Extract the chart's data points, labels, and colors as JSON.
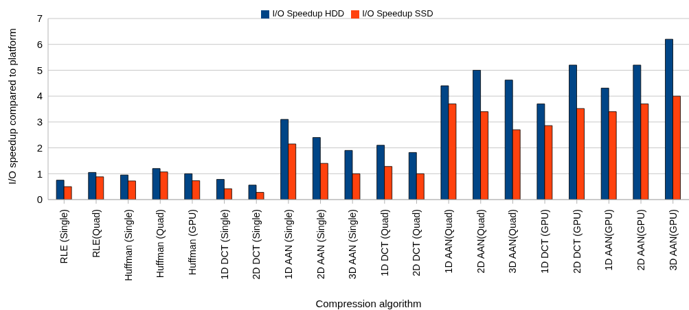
{
  "chart_data": {
    "type": "bar",
    "xlabel": "Compression algorithm",
    "ylabel": "I/O speedup compared to platform",
    "categories": [
      "RLE (Single)",
      "RLE(Quad)",
      "Huffman (Single)",
      "Huffman (Quad)",
      "Huffman (GPU)",
      "1D DCT (Single)",
      "2D DCT (Single)",
      "1D AAN (Single)",
      "2D AAN (Single)",
      "3D AAN (Single)",
      "1D DCT (Quad)",
      "2D DCT (Quad)",
      "1D AAN(Quad)",
      "2D AAN(Quad)",
      "3D AAN(Quad)",
      "1D DCT (GPU)",
      "2D DCT (GPU)",
      "1D AAN(GPU)",
      "2D AAN(GPU)",
      "3D AAN(GPU)"
    ],
    "series": [
      {
        "name": "I/O Speedup HDD",
        "color": "#004586",
        "values": [
          0.75,
          1.05,
          0.95,
          1.2,
          1.0,
          0.78,
          0.56,
          3.1,
          2.4,
          1.9,
          2.1,
          1.82,
          4.4,
          5.0,
          4.62,
          3.7,
          5.2,
          4.31,
          5.2,
          6.2
        ]
      },
      {
        "name": "I/O Speedup SSD",
        "color": "#ff420e",
        "values": [
          0.5,
          0.88,
          0.72,
          1.07,
          0.73,
          0.42,
          0.28,
          2.15,
          1.4,
          1.0,
          1.28,
          1.0,
          3.7,
          3.4,
          2.7,
          2.86,
          3.52,
          3.4,
          3.7,
          4.0
        ]
      }
    ],
    "ylim": [
      0,
      7
    ],
    "yticks": [
      0,
      1,
      2,
      3,
      4,
      5,
      6,
      7
    ],
    "grid": "y",
    "legend": "top"
  }
}
